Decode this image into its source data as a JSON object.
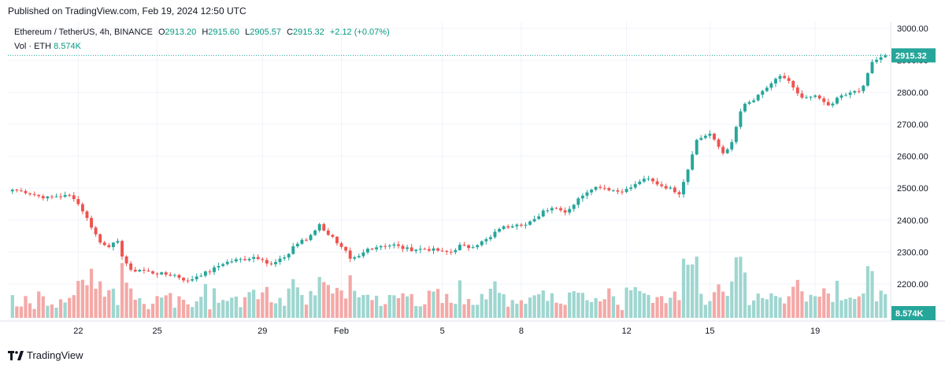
{
  "header": {
    "published": "Published on TradingView.com, Feb 19, 2024 12:50 UTC"
  },
  "legend": {
    "symbol": "Ethereum / TetherUS, 4h, BINANCE",
    "o_label": "O",
    "o_value": "2913.20",
    "h_label": "H",
    "h_value": "2915.60",
    "l_label": "L",
    "l_value": "2905.57",
    "c_label": "C",
    "c_value": "2915.32",
    "change": "+2.12 (+0.07%)",
    "vol_label": "Vol · ETH",
    "vol_value": "8.574K"
  },
  "footer": {
    "brand": "TradingView",
    "logo_icon": "tradingview-logo-icon"
  },
  "colors": {
    "up": "#26a69a",
    "down": "#ef5350",
    "up_vol": "#9fd6d0",
    "down_vol": "#f4a9a7",
    "grid": "#f0f3fa",
    "price_tag": "#26a69a"
  },
  "chart_data": {
    "type": "candlestick",
    "timeframe": "4h",
    "ylim": [
      2200,
      3000
    ],
    "y_ticks": [
      "3000.00",
      "2900.00",
      "2800.00",
      "2700.00",
      "2600.00",
      "2500.00",
      "2400.00",
      "2300.00",
      "2200.00"
    ],
    "x_ticks": [
      "22",
      "25",
      "29",
      "Feb",
      "5",
      "8",
      "12",
      "15",
      "19"
    ],
    "last_price": "2915.32",
    "last_volume": "8.574K",
    "anchors": [
      [
        0,
        2495
      ],
      [
        3,
        2488
      ],
      [
        6,
        2475
      ],
      [
        8,
        2470
      ],
      [
        10,
        2475
      ],
      [
        13,
        2476
      ],
      [
        14,
        2470
      ],
      [
        16,
        2430
      ],
      [
        18,
        2380
      ],
      [
        20,
        2330
      ],
      [
        22,
        2320
      ],
      [
        24,
        2330
      ],
      [
        25,
        2290
      ],
      [
        27,
        2240
      ],
      [
        29,
        2245
      ],
      [
        32,
        2235
      ],
      [
        35,
        2230
      ],
      [
        37,
        2228
      ],
      [
        40,
        2208
      ],
      [
        42,
        2225
      ],
      [
        45,
        2240
      ],
      [
        48,
        2265
      ],
      [
        51,
        2275
      ],
      [
        53,
        2278
      ],
      [
        55,
        2285
      ],
      [
        57,
        2280
      ],
      [
        58,
        2265
      ],
      [
        59,
        2260
      ],
      [
        61,
        2275
      ],
      [
        63,
        2295
      ],
      [
        64,
        2318
      ],
      [
        66,
        2335
      ],
      [
        67,
        2338
      ],
      [
        69,
        2370
      ],
      [
        70,
        2390
      ],
      [
        71,
        2365
      ],
      [
        73,
        2350
      ],
      [
        74,
        2325
      ],
      [
        76,
        2300
      ],
      [
        77,
        2275
      ],
      [
        79,
        2285
      ],
      [
        81,
        2310
      ],
      [
        84,
        2320
      ],
      [
        87,
        2322
      ],
      [
        89,
        2312
      ],
      [
        91,
        2308
      ],
      [
        94,
        2310
      ],
      [
        97,
        2305
      ],
      [
        98,
        2300
      ],
      [
        100,
        2300
      ],
      [
        102,
        2320
      ],
      [
        104,
        2315
      ],
      [
        106,
        2325
      ],
      [
        109,
        2345
      ],
      [
        111,
        2375
      ],
      [
        113,
        2380
      ],
      [
        115,
        2390
      ],
      [
        117,
        2385
      ],
      [
        119,
        2400
      ],
      [
        121,
        2430
      ],
      [
        123,
        2440
      ],
      [
        125,
        2435
      ],
      [
        126,
        2425
      ],
      [
        128,
        2450
      ],
      [
        130,
        2480
      ],
      [
        132,
        2500
      ],
      [
        134,
        2505
      ],
      [
        136,
        2497
      ],
      [
        138,
        2490
      ],
      [
        140,
        2495
      ],
      [
        142,
        2510
      ],
      [
        143,
        2522
      ],
      [
        145,
        2528
      ],
      [
        146,
        2520
      ],
      [
        148,
        2508
      ],
      [
        150,
        2498
      ],
      [
        152,
        2485
      ],
      [
        154,
        2560
      ],
      [
        155,
        2610
      ],
      [
        156,
        2650
      ],
      [
        158,
        2665
      ],
      [
        159,
        2670
      ],
      [
        160,
        2648
      ],
      [
        162,
        2610
      ],
      [
        164,
        2640
      ],
      [
        166,
        2740
      ],
      [
        167,
        2760
      ],
      [
        169,
        2775
      ],
      [
        171,
        2800
      ],
      [
        172,
        2815
      ],
      [
        174,
        2840
      ],
      [
        175,
        2848
      ],
      [
        176,
        2840
      ],
      [
        177,
        2835
      ],
      [
        178,
        2810
      ],
      [
        179,
        2795
      ],
      [
        180,
        2780
      ],
      [
        181,
        2785
      ],
      [
        182,
        2790
      ],
      [
        184,
        2780
      ],
      [
        185,
        2768
      ],
      [
        186,
        2760
      ],
      [
        187,
        2762
      ],
      [
        188,
        2780
      ],
      [
        189,
        2790
      ],
      [
        191,
        2795
      ],
      [
        193,
        2808
      ],
      [
        194,
        2822
      ],
      [
        195,
        2860
      ],
      [
        196,
        2890
      ],
      [
        197,
        2900
      ],
      [
        198,
        2913
      ],
      [
        199,
        2915.32
      ]
    ]
  }
}
